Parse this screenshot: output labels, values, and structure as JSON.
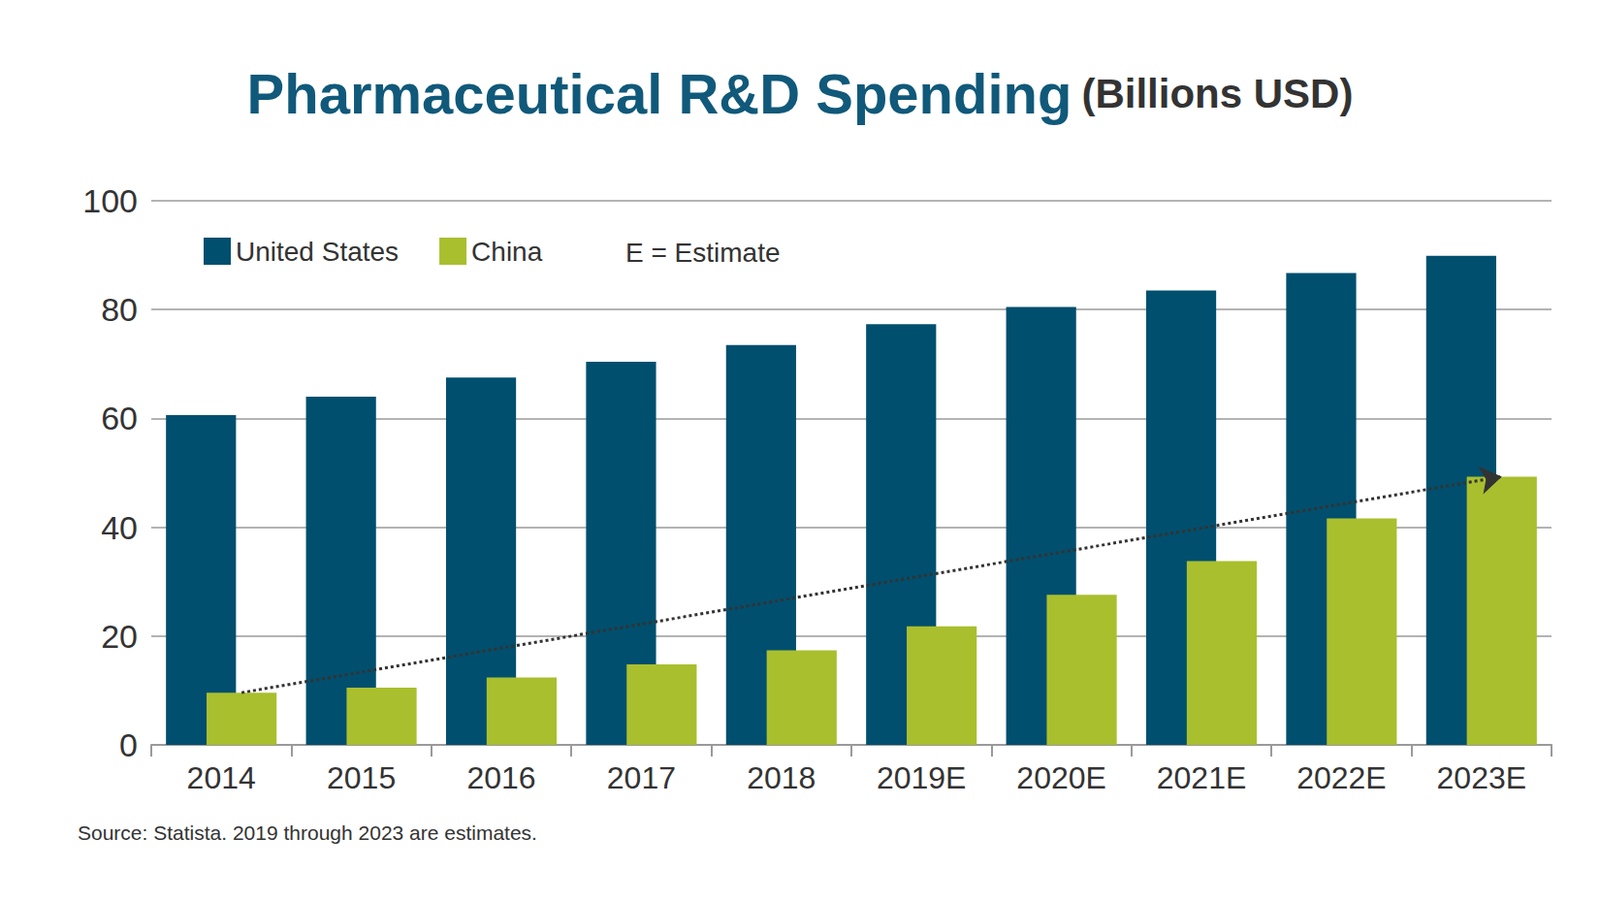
{
  "chart_data": {
    "type": "bar",
    "title": "Pharmaceutical R&D Spending",
    "subtitle": "(Billions USD)",
    "categories": [
      "2014",
      "2015",
      "2016",
      "2017",
      "2018",
      "2019E",
      "2020E",
      "2021E",
      "2022E",
      "2023E"
    ],
    "series": [
      {
        "name": "United States",
        "color": "#004f6e",
        "values": [
          60.6,
          64.0,
          67.5,
          70.4,
          73.5,
          77.3,
          80.5,
          83.5,
          86.7,
          89.9
        ]
      },
      {
        "name": "China",
        "color": "#a9bf2e",
        "values": [
          9.6,
          10.5,
          12.4,
          14.8,
          17.4,
          21.8,
          27.6,
          33.8,
          41.6,
          49.3
        ]
      }
    ],
    "ylim": [
      0,
      100
    ],
    "yticks": [
      0,
      20,
      40,
      60,
      80,
      100
    ],
    "grid": true,
    "legend": "top-left",
    "annotations": [
      "E = Estimate",
      "Source: Statista. 2019 through 2023 are estimates."
    ]
  }
}
